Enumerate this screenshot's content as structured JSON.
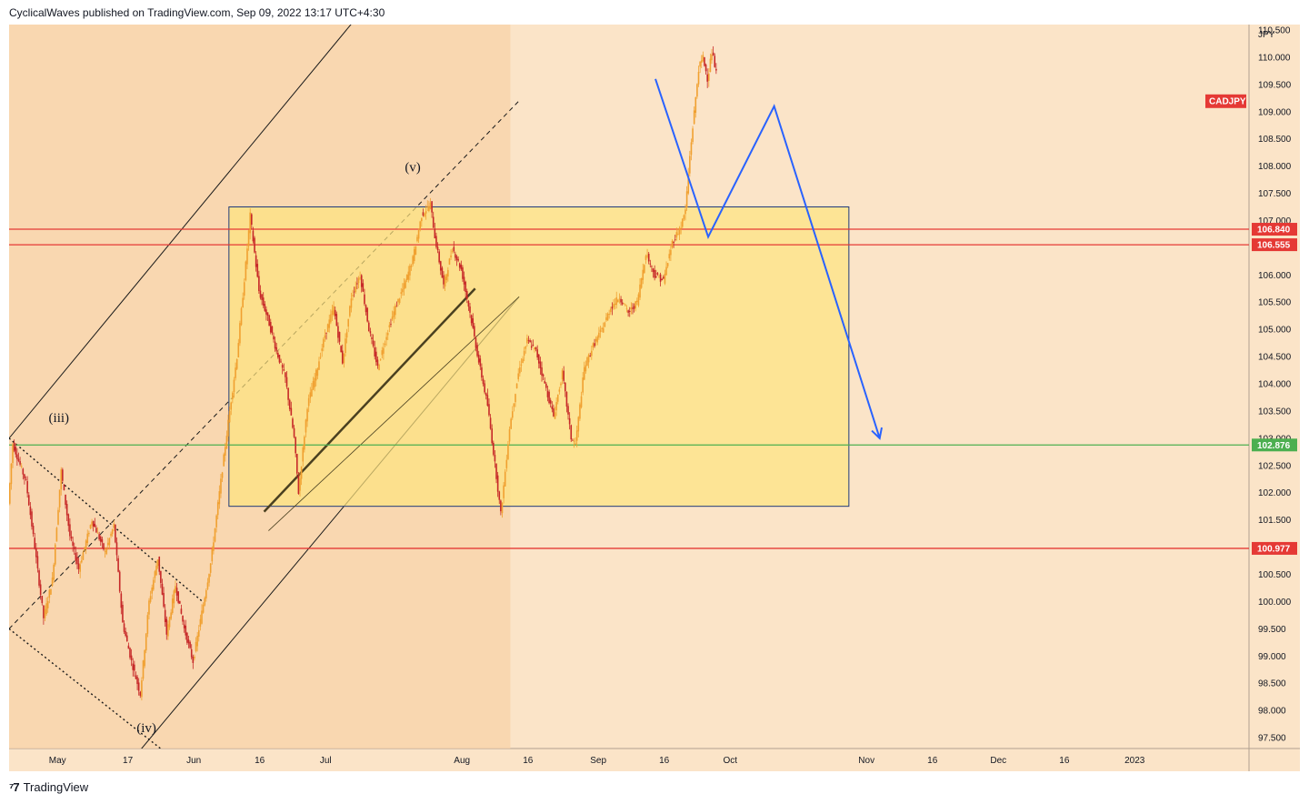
{
  "header": {
    "text": "CyclicalWaves published on TradingView.com, Sep 09, 2022 13:17 UTC+4:30"
  },
  "footer": {
    "brand": "TradingView",
    "logo": "tradingview-logo-icon"
  },
  "colors": {
    "background": "#fbe4c8",
    "channel_fill": "#f8d3a8",
    "box_fill": "#fde47f",
    "box_stroke": "#1f3a7a",
    "resistance": "#e53935",
    "support": "#4caf50",
    "forecast": "#2962ff",
    "candle_up": "#f0a030",
    "candle_down": "#c62828"
  },
  "chart_data": {
    "type": "candlestick",
    "symbol": "CADJPY",
    "currency": "JPY",
    "y_ticks": [
      "97.500",
      "98.000",
      "98.500",
      "99.000",
      "99.500",
      "100.000",
      "100.500",
      "101.000",
      "101.500",
      "102.000",
      "102.500",
      "103.000",
      "103.500",
      "104.000",
      "104.500",
      "105.000",
      "105.500",
      "106.000",
      "106.500",
      "107.000",
      "107.500",
      "108.000",
      "108.500",
      "109.000",
      "109.500",
      "110.000",
      "110.500"
    ],
    "y_range": [
      97.3,
      110.6
    ],
    "x_ticks": [
      {
        "label": "May",
        "day": 0
      },
      {
        "label": "17",
        "day": 16
      },
      {
        "label": "Jun",
        "day": 31
      },
      {
        "label": "16",
        "day": 46
      },
      {
        "label": "Jul",
        "day": 61
      },
      {
        "label": "Aug",
        "day": 92
      },
      {
        "label": "16",
        "day": 107
      },
      {
        "label": "Sep",
        "day": 123
      },
      {
        "label": "16",
        "day": 138
      },
      {
        "label": "Oct",
        "day": 153
      },
      {
        "label": "Nov",
        "day": 184
      },
      {
        "label": "16",
        "day": 199
      },
      {
        "label": "Dec",
        "day": 214
      },
      {
        "label": "16",
        "day": 229
      },
      {
        "label": "2023",
        "day": 245
      }
    ],
    "x_domain_days": [
      -11,
      271
    ],
    "price_levels": [
      {
        "value": 106.84,
        "label": "106.840",
        "color": "red"
      },
      {
        "value": 106.555,
        "label": "106.555",
        "color": "red"
      },
      {
        "value": 102.876,
        "label": "102.876",
        "color": "green"
      },
      {
        "value": 100.977,
        "label": "100.977",
        "color": "red"
      }
    ],
    "wave_labels": [
      {
        "text": "(iii)",
        "day": -2,
        "price": 103.3
      },
      {
        "text": "(iv)",
        "day": 18,
        "price": 97.6
      },
      {
        "text": "(v)",
        "day": 79,
        "price": 107.9
      }
    ],
    "range_box": {
      "day_start": 39,
      "day_end": 180,
      "price_high": 107.25,
      "price_low": 101.75
    },
    "forecast_path": [
      {
        "day": 136,
        "price": 109.6
      },
      {
        "day": 148,
        "price": 106.7
      },
      {
        "day": 163,
        "price": 109.1
      },
      {
        "day": 187,
        "price": 103.0
      }
    ],
    "price_path": [
      {
        "day": -11,
        "price": 101.8
      },
      {
        "day": -10,
        "price": 102.9
      },
      {
        "day": -7,
        "price": 102.2
      },
      {
        "day": -5,
        "price": 101.0
      },
      {
        "day": -3,
        "price": 99.7
      },
      {
        "day": -1,
        "price": 100.4
      },
      {
        "day": 1,
        "price": 102.4
      },
      {
        "day": 3,
        "price": 101.2
      },
      {
        "day": 5,
        "price": 100.6
      },
      {
        "day": 8,
        "price": 101.5
      },
      {
        "day": 11,
        "price": 100.9
      },
      {
        "day": 13,
        "price": 101.4
      },
      {
        "day": 15,
        "price": 99.6
      },
      {
        "day": 17,
        "price": 98.9
      },
      {
        "day": 19,
        "price": 98.3
      },
      {
        "day": 21,
        "price": 100.0
      },
      {
        "day": 23,
        "price": 100.8
      },
      {
        "day": 25,
        "price": 99.4
      },
      {
        "day": 27,
        "price": 100.3
      },
      {
        "day": 29,
        "price": 99.5
      },
      {
        "day": 31,
        "price": 98.9
      },
      {
        "day": 33,
        "price": 99.8
      },
      {
        "day": 35,
        "price": 100.7
      },
      {
        "day": 37,
        "price": 102.0
      },
      {
        "day": 39,
        "price": 103.3
      },
      {
        "day": 41,
        "price": 104.5
      },
      {
        "day": 43,
        "price": 106.2
      },
      {
        "day": 44,
        "price": 107.1
      },
      {
        "day": 46,
        "price": 105.7
      },
      {
        "day": 48,
        "price": 105.2
      },
      {
        "day": 50,
        "price": 104.6
      },
      {
        "day": 52,
        "price": 104.1
      },
      {
        "day": 54,
        "price": 103.0
      },
      {
        "day": 55,
        "price": 102.0
      },
      {
        "day": 57,
        "price": 103.6
      },
      {
        "day": 59,
        "price": 104.2
      },
      {
        "day": 61,
        "price": 104.9
      },
      {
        "day": 63,
        "price": 105.4
      },
      {
        "day": 65,
        "price": 104.4
      },
      {
        "day": 67,
        "price": 105.6
      },
      {
        "day": 69,
        "price": 106.0
      },
      {
        "day": 71,
        "price": 105.0
      },
      {
        "day": 73,
        "price": 104.3
      },
      {
        "day": 75,
        "price": 104.9
      },
      {
        "day": 77,
        "price": 105.4
      },
      {
        "day": 79,
        "price": 105.8
      },
      {
        "day": 81,
        "price": 106.3
      },
      {
        "day": 83,
        "price": 107.1
      },
      {
        "day": 85,
        "price": 107.3
      },
      {
        "day": 86,
        "price": 106.7
      },
      {
        "day": 88,
        "price": 105.8
      },
      {
        "day": 90,
        "price": 106.5
      },
      {
        "day": 92,
        "price": 106.1
      },
      {
        "day": 94,
        "price": 105.3
      },
      {
        "day": 96,
        "price": 104.4
      },
      {
        "day": 98,
        "price": 103.6
      },
      {
        "day": 100,
        "price": 102.3
      },
      {
        "day": 101,
        "price": 101.6
      },
      {
        "day": 103,
        "price": 103.2
      },
      {
        "day": 105,
        "price": 104.2
      },
      {
        "day": 107,
        "price": 104.8
      },
      {
        "day": 109,
        "price": 104.6
      },
      {
        "day": 111,
        "price": 104.0
      },
      {
        "day": 113,
        "price": 103.4
      },
      {
        "day": 115,
        "price": 104.2
      },
      {
        "day": 117,
        "price": 103.0
      },
      {
        "day": 118,
        "price": 102.9
      },
      {
        "day": 120,
        "price": 104.3
      },
      {
        "day": 122,
        "price": 104.7
      },
      {
        "day": 124,
        "price": 105.0
      },
      {
        "day": 126,
        "price": 105.4
      },
      {
        "day": 128,
        "price": 105.6
      },
      {
        "day": 130,
        "price": 105.3
      },
      {
        "day": 132,
        "price": 105.5
      },
      {
        "day": 134,
        "price": 106.4
      },
      {
        "day": 136,
        "price": 106.0
      },
      {
        "day": 138,
        "price": 105.9
      },
      {
        "day": 140,
        "price": 106.6
      },
      {
        "day": 142,
        "price": 106.9
      },
      {
        "day": 143,
        "price": 107.2
      },
      {
        "day": 144,
        "price": 108.2
      },
      {
        "day": 145,
        "price": 109.0
      },
      {
        "day": 146,
        "price": 109.8
      },
      {
        "day": 147,
        "price": 110.0
      },
      {
        "day": 148,
        "price": 109.6
      },
      {
        "day": 149,
        "price": 110.1
      },
      {
        "day": 150,
        "price": 109.7
      }
    ]
  }
}
